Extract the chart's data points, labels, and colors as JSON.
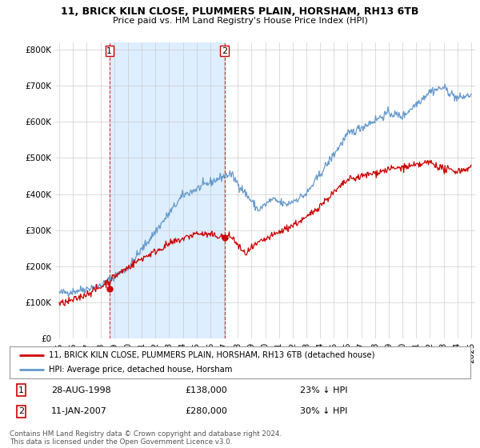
{
  "title1": "11, BRICK KILN CLOSE, PLUMMERS PLAIN, HORSHAM, RH13 6TB",
  "title2": "Price paid vs. HM Land Registry's House Price Index (HPI)",
  "legend_red": "11, BRICK KILN CLOSE, PLUMMERS PLAIN, HORSHAM, RH13 6TB (detached house)",
  "legend_blue": "HPI: Average price, detached house, Horsham",
  "annotation1_date": "28-AUG-1998",
  "annotation1_price": "£138,000",
  "annotation1_hpi": "23% ↓ HPI",
  "annotation2_date": "11-JAN-2007",
  "annotation2_price": "£280,000",
  "annotation2_hpi": "30% ↓ HPI",
  "footnote": "Contains HM Land Registry data © Crown copyright and database right 2024.\nThis data is licensed under the Open Government Licence v3.0.",
  "red_color": "#cc0000",
  "blue_color": "#6699cc",
  "shade_color": "#ddeeff",
  "background_color": "#ffffff",
  "grid_color": "#cccccc",
  "ylim": [
    0,
    820000
  ],
  "yticks": [
    0,
    100000,
    200000,
    300000,
    400000,
    500000,
    600000,
    700000,
    800000
  ],
  "sale1_x": 1998.65,
  "sale1_y": 138000,
  "sale2_x": 2007.03,
  "sale2_y": 280000,
  "vline1_x": 1998.65,
  "vline2_x": 2007.03,
  "xmin": 1995,
  "xmax": 2025
}
